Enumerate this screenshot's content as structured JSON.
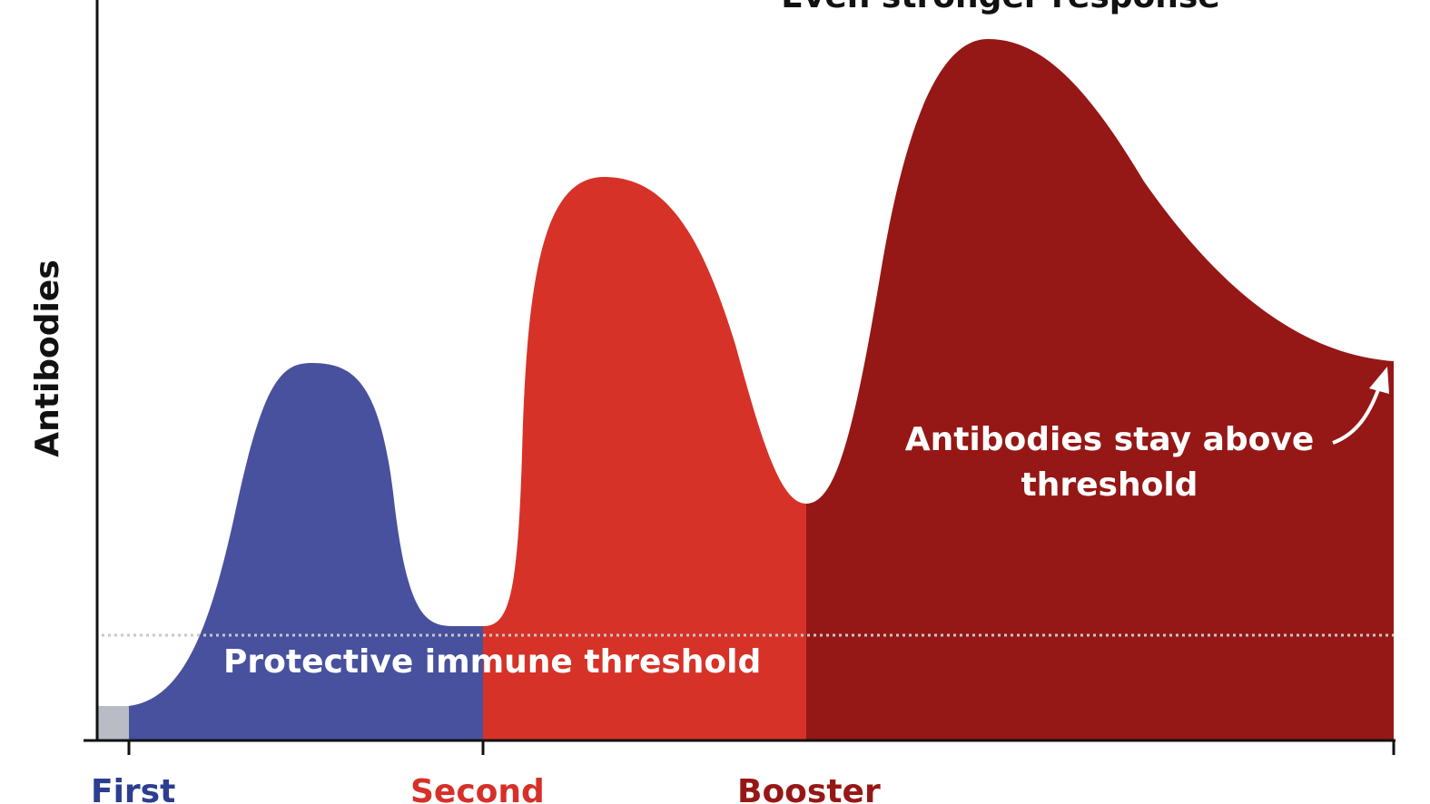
{
  "title": "Even stronger response",
  "y_axis_label": "Antibodies",
  "annotation": {
    "lines": [
      "Antibodies stay above",
      "threshold"
    ]
  },
  "threshold_label": "Protective immune threshold",
  "doses": [
    "First",
    "Second",
    "Booster"
  ]
}
